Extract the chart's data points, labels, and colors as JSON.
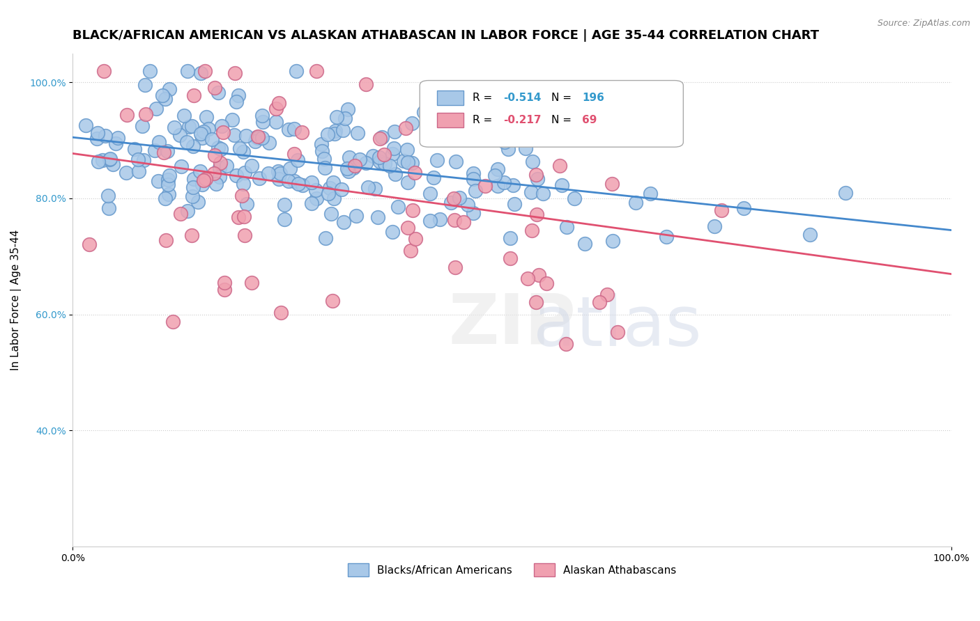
{
  "title": "BLACK/AFRICAN AMERICAN VS ALASKAN ATHABASCAN IN LABOR FORCE | AGE 35-44 CORRELATION CHART",
  "source": "Source: ZipAtlas.com",
  "xlabel": "",
  "ylabel": "In Labor Force | Age 35-44",
  "xlim": [
    0.0,
    1.0
  ],
  "ylim": [
    0.2,
    1.05
  ],
  "xticks": [
    0.0,
    1.0
  ],
  "xticklabels": [
    "0.0%",
    "100.0%"
  ],
  "yticks": [
    0.4,
    0.6,
    0.8,
    1.0
  ],
  "yticklabels": [
    "40.0%",
    "60.0%",
    "80.0%",
    "100.0%"
  ],
  "blue_R": -0.514,
  "blue_N": 196,
  "pink_R": -0.217,
  "pink_N": 69,
  "blue_color": "#a8c8e8",
  "pink_color": "#f0a0b0",
  "blue_line_color": "#4488cc",
  "pink_line_color": "#e05070",
  "blue_marker_edge": "#6699cc",
  "pink_marker_edge": "#cc6688",
  "legend_label_blue": "Blacks/African Americans",
  "legend_label_pink": "Alaskan Athabascans",
  "watermark": "ZIPatlas",
  "background_color": "#ffffff",
  "title_fontsize": 13,
  "axis_fontsize": 11,
  "tick_fontsize": 10
}
